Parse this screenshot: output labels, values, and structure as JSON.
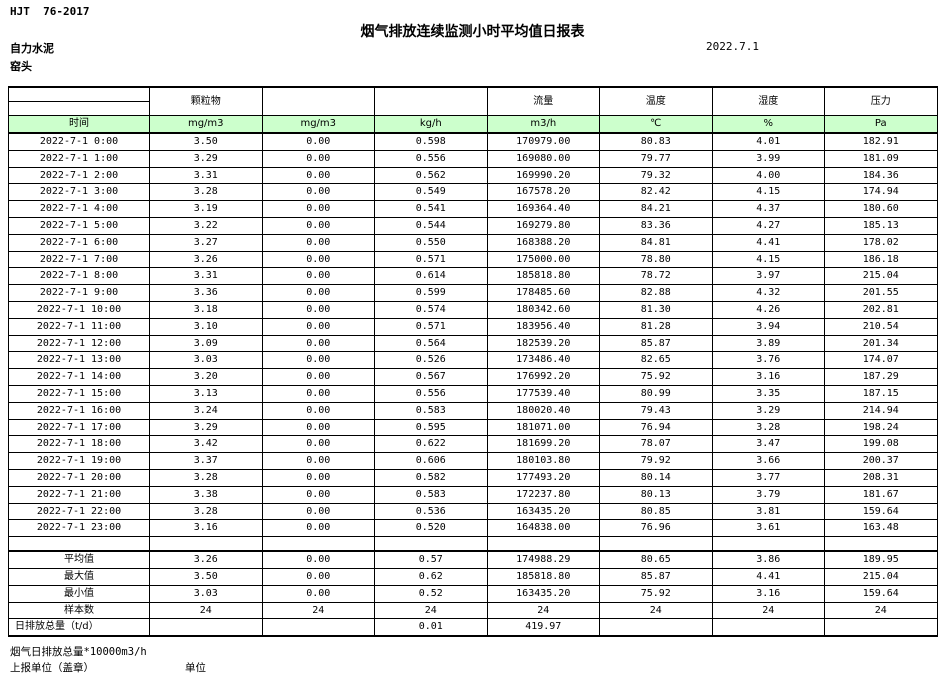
{
  "page": {
    "doc_code": "HJT  76-2017",
    "company": "自力水泥",
    "stack": "窑头",
    "title": "烟气排放连续监测小时平均值日报表",
    "date": "2022.7.1"
  },
  "colors": {
    "header_green": "#CCFFCC",
    "border": "#000000"
  },
  "table": {
    "time_header": "时间",
    "group_labels": [
      "颗粒物",
      "",
      "",
      "流量",
      "温度",
      "湿度",
      "压力"
    ],
    "unit_labels": [
      "mg/m3",
      "mg/m3",
      "kg/h",
      "m3/h",
      "℃",
      "%",
      "Pa"
    ],
    "rows": [
      {
        "time": "2022-7-1 0:00",
        "values": [
          "3.50",
          "0.00",
          "0.598",
          "170979.00",
          "80.83",
          "4.01",
          "182.91"
        ]
      },
      {
        "time": "2022-7-1 1:00",
        "values": [
          "3.29",
          "0.00",
          "0.556",
          "169080.00",
          "79.77",
          "3.99",
          "181.09"
        ]
      },
      {
        "time": "2022-7-1 2:00",
        "values": [
          "3.31",
          "0.00",
          "0.562",
          "169990.20",
          "79.32",
          "4.00",
          "184.36"
        ]
      },
      {
        "time": "2022-7-1 3:00",
        "values": [
          "3.28",
          "0.00",
          "0.549",
          "167578.20",
          "82.42",
          "4.15",
          "174.94"
        ]
      },
      {
        "time": "2022-7-1 4:00",
        "values": [
          "3.19",
          "0.00",
          "0.541",
          "169364.40",
          "84.21",
          "4.37",
          "180.60"
        ]
      },
      {
        "time": "2022-7-1 5:00",
        "values": [
          "3.22",
          "0.00",
          "0.544",
          "169279.80",
          "83.36",
          "4.27",
          "185.13"
        ]
      },
      {
        "time": "2022-7-1 6:00",
        "values": [
          "3.27",
          "0.00",
          "0.550",
          "168388.20",
          "84.81",
          "4.41",
          "178.02"
        ]
      },
      {
        "time": "2022-7-1 7:00",
        "values": [
          "3.26",
          "0.00",
          "0.571",
          "175000.00",
          "78.80",
          "4.15",
          "186.18"
        ]
      },
      {
        "time": "2022-7-1 8:00",
        "values": [
          "3.31",
          "0.00",
          "0.614",
          "185818.80",
          "78.72",
          "3.97",
          "215.04"
        ]
      },
      {
        "time": "2022-7-1 9:00",
        "values": [
          "3.36",
          "0.00",
          "0.599",
          "178485.60",
          "82.88",
          "4.32",
          "201.55"
        ]
      },
      {
        "time": "2022-7-1 10:00",
        "values": [
          "3.18",
          "0.00",
          "0.574",
          "180342.60",
          "81.30",
          "4.26",
          "202.81"
        ]
      },
      {
        "time": "2022-7-1 11:00",
        "values": [
          "3.10",
          "0.00",
          "0.571",
          "183956.40",
          "81.28",
          "3.94",
          "210.54"
        ]
      },
      {
        "time": "2022-7-1 12:00",
        "values": [
          "3.09",
          "0.00",
          "0.564",
          "182539.20",
          "85.87",
          "3.89",
          "201.34"
        ]
      },
      {
        "time": "2022-7-1 13:00",
        "values": [
          "3.03",
          "0.00",
          "0.526",
          "173486.40",
          "82.65",
          "3.76",
          "174.07"
        ]
      },
      {
        "time": "2022-7-1 14:00",
        "values": [
          "3.20",
          "0.00",
          "0.567",
          "176992.20",
          "75.92",
          "3.16",
          "187.29"
        ]
      },
      {
        "time": "2022-7-1 15:00",
        "values": [
          "3.13",
          "0.00",
          "0.556",
          "177539.40",
          "80.99",
          "3.35",
          "187.15"
        ]
      },
      {
        "time": "2022-7-1 16:00",
        "values": [
          "3.24",
          "0.00",
          "0.583",
          "180020.40",
          "79.43",
          "3.29",
          "214.94"
        ]
      },
      {
        "time": "2022-7-1 17:00",
        "values": [
          "3.29",
          "0.00",
          "0.595",
          "181071.00",
          "76.94",
          "3.28",
          "198.24"
        ]
      },
      {
        "time": "2022-7-1 18:00",
        "values": [
          "3.42",
          "0.00",
          "0.622",
          "181699.20",
          "78.07",
          "3.47",
          "199.08"
        ]
      },
      {
        "time": "2022-7-1 19:00",
        "values": [
          "3.37",
          "0.00",
          "0.606",
          "180103.80",
          "79.92",
          "3.66",
          "200.37"
        ]
      },
      {
        "time": "2022-7-1 20:00",
        "values": [
          "3.28",
          "0.00",
          "0.582",
          "177493.20",
          "80.14",
          "3.77",
          "208.31"
        ]
      },
      {
        "time": "2022-7-1 21:00",
        "values": [
          "3.38",
          "0.00",
          "0.583",
          "172237.80",
          "80.13",
          "3.79",
          "181.67"
        ]
      },
      {
        "time": "2022-7-1 22:00",
        "values": [
          "3.28",
          "0.00",
          "0.536",
          "163435.20",
          "80.85",
          "3.81",
          "159.64"
        ]
      },
      {
        "time": "2022-7-1 23:00",
        "values": [
          "3.16",
          "0.00",
          "0.520",
          "164838.00",
          "76.96",
          "3.61",
          "163.48"
        ]
      }
    ],
    "summary": [
      {
        "label": "平均值",
        "values": [
          "3.26",
          "0.00",
          "0.57",
          "174988.29",
          "80.65",
          "3.86",
          "189.95"
        ]
      },
      {
        "label": "最大值",
        "values": [
          "3.50",
          "0.00",
          "0.62",
          "185818.80",
          "85.87",
          "4.41",
          "215.04"
        ]
      },
      {
        "label": "最小值",
        "values": [
          "3.03",
          "0.00",
          "0.52",
          "163435.20",
          "75.92",
          "3.16",
          "159.64"
        ]
      },
      {
        "label": "样本数",
        "values": [
          "24",
          "24",
          "24",
          "24",
          "24",
          "24",
          "24"
        ]
      },
      {
        "label": "日排放总量（t/d）",
        "values": [
          "",
          "",
          "0.01",
          "419.97",
          "",
          "",
          ""
        ]
      }
    ]
  },
  "footer": {
    "note": "烟气日排放总量*10000m3/h",
    "report_unit_label": "上报单位（盖章）",
    "unit_label": "单位"
  }
}
